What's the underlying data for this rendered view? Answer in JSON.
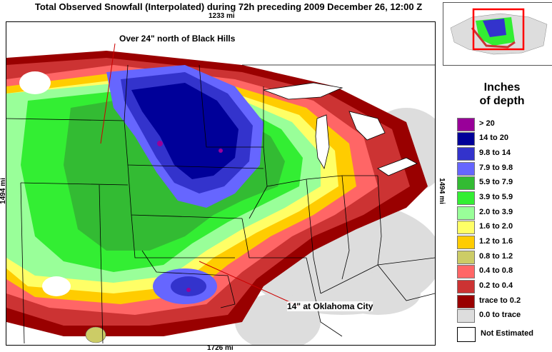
{
  "title": "Total Observed Snowfall (Interpolated) during 72h preceding 2009 December 26, 12:00 Z",
  "distances": {
    "top": "1233 mi",
    "bottom": "1726 mi",
    "left": "1494 mi",
    "right": "1494 mi"
  },
  "annotations": {
    "black_hills": "Over 24\" north of Black Hills",
    "okc": "14\" at Oklahoma City"
  },
  "legend": {
    "title_line1": "Inches",
    "title_line2": "of depth",
    "items": [
      {
        "label": "> 20",
        "color": "#990099"
      },
      {
        "label": "14 to 20",
        "color": "#000099"
      },
      {
        "label": "9.8 to 14",
        "color": "#3333cc"
      },
      {
        "label": "7.9 to 9.8",
        "color": "#6666ff"
      },
      {
        "label": "5.9 to 7.9",
        "color": "#33bb33"
      },
      {
        "label": "3.9 to 5.9",
        "color": "#33ee33"
      },
      {
        "label": "2.0 to 3.9",
        "color": "#99ff99"
      },
      {
        "label": "1.6 to 2.0",
        "color": "#ffff66"
      },
      {
        "label": "1.2 to 1.6",
        "color": "#ffcc00"
      },
      {
        "label": "0.8 to 1.2",
        "color": "#cccc66"
      },
      {
        "label": "0.4 to 0.8",
        "color": "#ff6666"
      },
      {
        "label": "0.2 to 0.4",
        "color": "#cc3333"
      },
      {
        "label": "trace to 0.2",
        "color": "#990000"
      },
      {
        "label": "0.0 to trace",
        "color": "#dddddd"
      }
    ],
    "not_estimated": "Not Estimated"
  },
  "inset": {
    "land_color": "#dddddd",
    "highlight_color": "#ff0000"
  }
}
